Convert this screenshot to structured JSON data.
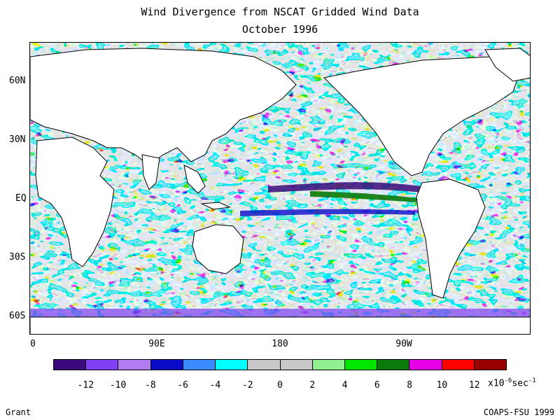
{
  "header": {
    "title": "Wind Divergence from NSCAT Gridded Wind Data",
    "subtitle": "October 1996"
  },
  "axes": {
    "y_ticks": [
      "60N",
      "30N",
      "EQ",
      "30S",
      "60S"
    ],
    "x_ticks": [
      "0",
      "90E",
      "180",
      "90W"
    ]
  },
  "legend": {
    "colors": [
      "#3a0a7a",
      "#7f3ff2",
      "#b07cf0",
      "#0a0ac8",
      "#3a8bff",
      "#00ffff",
      "#c8c8c8",
      "#c8c8c8",
      "#90f090",
      "#00e600",
      "#0a7a0a",
      "#e600e6",
      "#ff0000",
      "#990000"
    ],
    "labels": [
      "-12",
      "-10",
      "-8",
      "-6",
      "-4",
      "-2",
      "0",
      "2",
      "4",
      "6",
      "8",
      "10",
      "12"
    ],
    "units_prefix": "x10",
    "units_exp1": "-6",
    "units_mid": "sec",
    "units_exp2": "-1"
  },
  "map": {
    "field": "wind divergence",
    "region": "global ocean",
    "land_color": "#ffffff",
    "ocean_base_color": "#c8c8c8"
  },
  "credits": {
    "left": "Grant",
    "right": "COAPS-FSU 1999"
  }
}
